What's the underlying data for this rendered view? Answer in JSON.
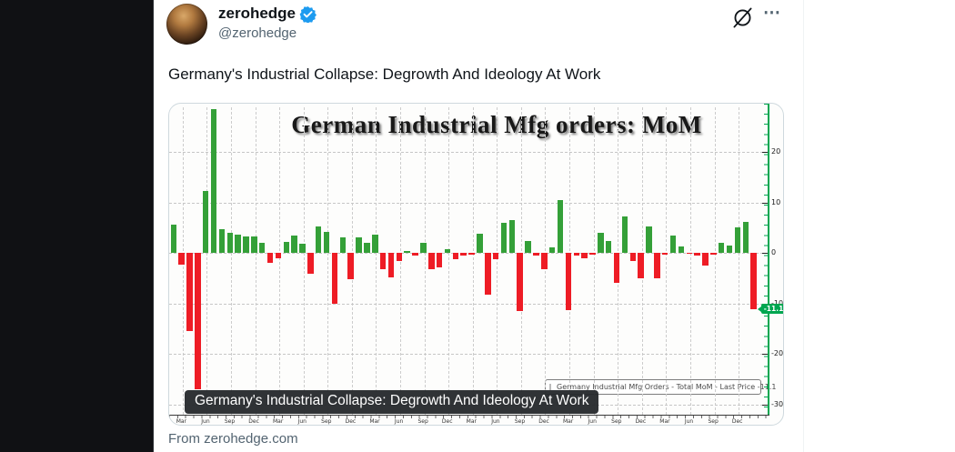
{
  "tweet": {
    "display_name": "zerohedge",
    "handle": "@zerohedge",
    "text": "Germany's Industrial Collapse: Degrowth And Ideology At Work",
    "media_caption": "Germany's Industrial Collapse: Degrowth And Ideology At Work",
    "source": "From zerohedge.com",
    "actions": {
      "more_label": "⋯"
    },
    "colors": {
      "verified": "#1d9bf0",
      "handle_gray": "#536471",
      "text": "#0f1419"
    }
  },
  "chart_data": {
    "type": "bar",
    "title": "German Industrial Mfg orders: MoM",
    "series_name": "Germany Industrial Mfg Orders - Total MoM",
    "legend_label": "Germany Industrial Mfg Orders - Total MoM - Last Price -11.1",
    "last_price": -11.1,
    "yticks": [
      20,
      10,
      0,
      -10,
      -20,
      -30
    ],
    "ylim": [
      -33,
      29
    ],
    "grid": true,
    "legend_position": "bottom-right",
    "y_axis_side": "right",
    "xtick_labels": [
      "Mar",
      "Jun",
      "Sep",
      "Dec",
      "Mar",
      "Jun",
      "Sep",
      "Dec",
      "Mar",
      "Jun",
      "Sep",
      "Dec",
      "Mar",
      "Jun",
      "Sep",
      "Dec",
      "Mar",
      "Jun",
      "Sep",
      "Dec",
      "Mar",
      "Jun",
      "Sep",
      "Dec"
    ],
    "values": [
      5.5,
      -2.3,
      -15.5,
      -27,
      12.2,
      28.4,
      4.6,
      4,
      3.6,
      3.3,
      3.2,
      1.9,
      -2,
      -1.1,
      2.2,
      3.4,
      1.8,
      -4.1,
      5.3,
      4.1,
      -10,
      3,
      -5.3,
      3.1,
      2,
      3.6,
      -3.2,
      -4.9,
      -1.6,
      0.4,
      -0.5,
      1.9,
      -3.2,
      -2.8,
      0.8,
      -1.2,
      -0.5,
      -0.4,
      3.8,
      -8.3,
      -1.2,
      6,
      6.5,
      -11.5,
      2.4,
      -0.5,
      -3.2,
      1.1,
      10.5,
      -11.4,
      -0.5,
      -1,
      -0.4,
      4,
      2.4,
      -6,
      7.2,
      -1.6,
      -5.1,
      5.3,
      -5.1,
      -0.4,
      3.4,
      1.2,
      -0.2,
      -0.5,
      -2.6,
      -0.4,
      2,
      1.4,
      5,
      6.2,
      -11.1
    ],
    "positive_color": "#34a038",
    "negative_color": "#ee1c25",
    "axis_color": "#00a650"
  }
}
